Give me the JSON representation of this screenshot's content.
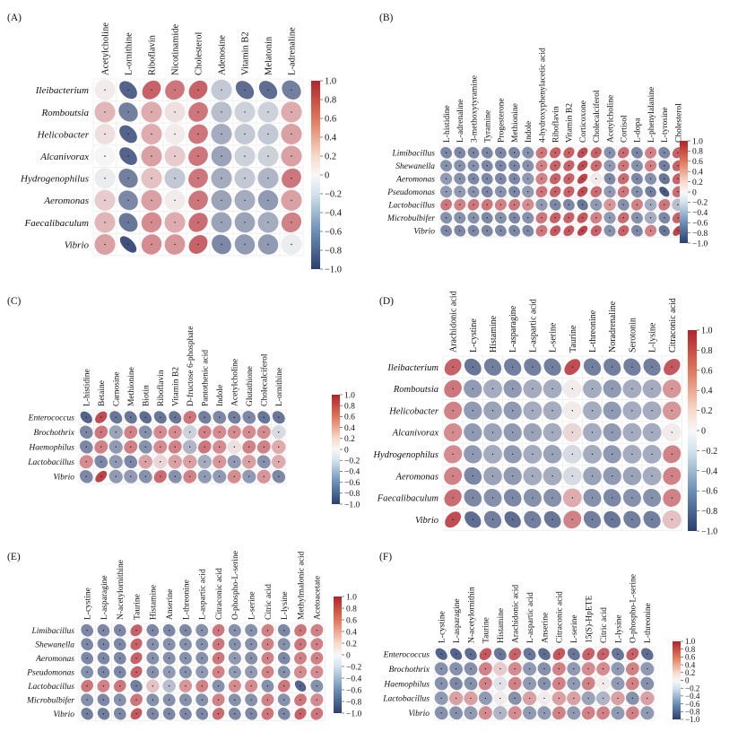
{
  "colors": {
    "neg": "#2c3f70",
    "mid": "#f5f5f5",
    "pos": "#b2232b",
    "grid": "#ececec",
    "border": "#d8d8d8"
  },
  "chart_data": [
    {
      "type": "heatmap",
      "panel": "(A)",
      "title": "",
      "columns": [
        "Acetylcholine",
        "L-ornithine",
        "Riboflavin",
        "Nicotinamide",
        "Cholesterol",
        "Adenosine",
        "Vitamin B2",
        "Melatonin",
        "L-adrenaline"
      ],
      "rows": [
        "Ileibacterium",
        "Romboutsia",
        "Helicobacter",
        "Alcanivorax",
        "Hydrogenophilus",
        "Aeromonas",
        "Faecalibaculum",
        "Vibrio"
      ],
      "values": [
        [
          0.05,
          -0.8,
          0.7,
          0.6,
          0.7,
          -0.25,
          -0.75,
          -0.75,
          -0.65
        ],
        [
          0.3,
          -0.65,
          0.35,
          0.1,
          0.6,
          -0.3,
          -0.2,
          -0.2,
          0.35
        ],
        [
          0.1,
          -0.8,
          0.35,
          0.05,
          0.6,
          -0.4,
          -0.25,
          -0.25,
          0.4
        ],
        [
          0.0,
          -0.8,
          0.4,
          0.2,
          0.6,
          -0.45,
          -0.2,
          -0.2,
          0.4
        ],
        [
          -0.05,
          -0.65,
          0.25,
          -0.25,
          0.6,
          -0.4,
          -0.25,
          -0.35,
          0.6
        ],
        [
          0.2,
          -0.6,
          0.4,
          0.05,
          0.6,
          -0.45,
          -0.4,
          -0.5,
          0.4
        ],
        [
          0.3,
          -0.7,
          0.5,
          0.35,
          0.65,
          -0.45,
          -0.45,
          -0.4,
          0.55
        ],
        [
          0.4,
          -0.9,
          0.5,
          0.45,
          0.7,
          -0.6,
          -0.5,
          -0.5,
          -0.05
        ]
      ],
      "colorbar": [
        "1.0",
        "0.8",
        "0.6",
        "0.4",
        "0.2",
        "0",
        "−0.2",
        "−0.4",
        "−0.6",
        "−0.8",
        "−1.0"
      ],
      "vmin": -1.0,
      "vmax": 1.0
    },
    {
      "type": "heatmap",
      "panel": "(B)",
      "title": "",
      "columns": [
        "L-histidine",
        "L-adrenaline",
        "3-methoxytyramine",
        "Tyramine",
        "Progesterone",
        "Methionine",
        "Indole",
        "4-hydroxyphenylacetic acid",
        "Riboflavin",
        "Vitamin B2",
        "Corticoxone",
        "Cholecalciferol",
        "Acetylcholine",
        "Cortisol",
        "L-dopa",
        "L-phenylalanine",
        "L-tyrosine",
        "Cholesterol"
      ],
      "rows": [
        "Limibacillus",
        "Shewanella",
        "Aeromonas",
        "Pseudomonas",
        "Lactobacillus",
        "Microbulbifer",
        "Vibrio"
      ],
      "values": [
        [
          -0.6,
          -0.6,
          -0.6,
          -0.6,
          -0.6,
          -0.6,
          -0.55,
          0.6,
          0.7,
          0.7,
          0.8,
          0.7,
          -0.55,
          0.65,
          -0.6,
          0.55,
          -0.6,
          0.7
        ],
        [
          -0.55,
          -0.55,
          -0.55,
          -0.6,
          -0.6,
          -0.6,
          -0.55,
          0.55,
          0.7,
          0.7,
          0.8,
          0.65,
          -0.5,
          0.6,
          -0.55,
          0.55,
          -0.65,
          0.7
        ],
        [
          -0.5,
          -0.55,
          -0.6,
          -0.6,
          -0.6,
          -0.6,
          -0.5,
          0.55,
          0.7,
          0.7,
          0.85,
          0.05,
          -0.6,
          0.65,
          -0.6,
          -0.55,
          -0.7,
          0.7
        ],
        [
          -0.5,
          -0.5,
          -0.55,
          -0.6,
          -0.55,
          -0.6,
          -0.5,
          0.6,
          0.7,
          0.7,
          0.8,
          0.65,
          -0.5,
          0.6,
          -0.55,
          -0.65,
          -0.85,
          0.65
        ],
        [
          0.6,
          0.55,
          0.6,
          0.6,
          0.55,
          0.6,
          0.5,
          -0.5,
          -0.6,
          -0.6,
          -0.7,
          -0.5,
          0.45,
          -0.55,
          0.55,
          -0.4,
          0.6,
          -0.3
        ],
        [
          -0.55,
          -0.55,
          -0.55,
          -0.6,
          -0.55,
          -0.6,
          -0.55,
          0.6,
          0.7,
          0.7,
          0.75,
          0.55,
          -0.5,
          0.65,
          -0.55,
          -0.4,
          -0.6,
          0.7
        ],
        [
          -0.6,
          -0.6,
          -0.6,
          -0.6,
          -0.6,
          -0.6,
          -0.6,
          0.6,
          0.75,
          0.75,
          0.85,
          0.7,
          -0.55,
          0.7,
          -0.6,
          0.55,
          -0.7,
          0.85
        ]
      ],
      "colorbar": [
        "1.0",
        "0.8",
        "0.6",
        "0.4",
        "0.2",
        "0",
        "−0.2",
        "−0.4",
        "−0.6",
        "−0.8",
        "−1.0"
      ],
      "vmin": -1.0,
      "vmax": 1.0
    },
    {
      "type": "heatmap",
      "panel": "(C)",
      "title": "",
      "columns": [
        "L-histidine",
        "Betaine",
        "Carnosine",
        "Methionine",
        "Biotin",
        "Riboflavin",
        "Vitamin B2",
        "D-fructose 6-phosphate",
        "Pantothenic acid",
        "Indole",
        "Acetylcholine",
        "Glutathione",
        "Cholecalciferol",
        "L-ornithine"
      ],
      "rows": [
        "Enterococcus",
        "Brochothrix",
        "Haemophilus",
        "Lactobacillus",
        "Vibrio"
      ],
      "values": [
        [
          -0.8,
          0.8,
          -0.7,
          -0.7,
          -0.75,
          -0.7,
          -0.7,
          0.6,
          -0.65,
          -0.6,
          -0.65,
          -0.6,
          -0.7,
          -0.7
        ],
        [
          -0.6,
          0.6,
          -0.45,
          0.55,
          -0.55,
          0.5,
          0.5,
          -0.2,
          0.55,
          0.5,
          0.5,
          0.5,
          0.5,
          -0.15
        ],
        [
          -0.6,
          0.55,
          -0.5,
          0.55,
          -0.55,
          0.5,
          0.55,
          -0.35,
          0.6,
          0.5,
          0.1,
          0.55,
          0.55,
          0.35
        ],
        [
          0.5,
          -0.6,
          -0.5,
          -0.6,
          0.4,
          0.15,
          0.4,
          0.4,
          -0.4,
          0.45,
          -0.5,
          0.4,
          -0.55,
          0.35
        ],
        [
          -0.6,
          0.85,
          -0.5,
          -0.5,
          -0.55,
          0.65,
          -0.55,
          0.55,
          -0.5,
          -0.5,
          0.5,
          -0.5,
          0.45,
          -0.6
        ]
      ],
      "colorbar": [
        "1.0",
        "0.8",
        "0.6",
        "0.4",
        "0.2",
        "0",
        "−0.2",
        "−0.4",
        "−0.6",
        "−0.8",
        "−1.0"
      ],
      "vmin": -1.0,
      "vmax": 1.0
    },
    {
      "type": "heatmap",
      "panel": "(D)",
      "title": "",
      "columns": [
        "Arachidonic acid",
        "L-cystine",
        "Histamine",
        "L-asparagine",
        "L-aspartic acid",
        "L-serine",
        "Taurine",
        "L-threonine",
        "Noradrenaline",
        "Serotonin",
        "L-lysine",
        "Citraconic acid"
      ],
      "rows": [
        "Ileibacterium",
        "Romboutsia",
        "Helicobacter",
        "Alcanivorax",
        "Hydrogenophilus",
        "Aeromonas",
        "Faecalibaculum",
        "Vibrio"
      ],
      "values": [
        [
          0.7,
          -0.7,
          -0.65,
          -0.65,
          -0.65,
          -0.65,
          0.8,
          -0.65,
          -0.65,
          -0.65,
          -0.65,
          0.75
        ],
        [
          0.6,
          -0.5,
          -0.4,
          -0.5,
          -0.4,
          -0.4,
          0.05,
          -0.4,
          -0.5,
          -0.4,
          -0.4,
          0.45
        ],
        [
          0.55,
          -0.5,
          -0.45,
          -0.5,
          -0.4,
          -0.4,
          0.05,
          -0.4,
          -0.5,
          -0.4,
          -0.4,
          0.45
        ],
        [
          0.5,
          -0.5,
          -0.45,
          -0.5,
          -0.45,
          -0.4,
          0.15,
          -0.4,
          -0.5,
          -0.4,
          -0.4,
          0.05
        ],
        [
          0.5,
          -0.5,
          -0.4,
          -0.5,
          -0.4,
          -0.45,
          -0.15,
          -0.4,
          -0.5,
          -0.4,
          -0.4,
          0.55
        ],
        [
          0.55,
          -0.6,
          -0.45,
          -0.5,
          -0.4,
          -0.4,
          -0.15,
          -0.45,
          -0.5,
          -0.45,
          -0.4,
          0.55
        ],
        [
          0.65,
          -0.6,
          -0.55,
          -0.6,
          -0.55,
          -0.55,
          0.35,
          -0.55,
          -0.6,
          -0.55,
          -0.55,
          0.55
        ],
        [
          0.8,
          -0.75,
          -0.65,
          -0.75,
          -0.65,
          -0.7,
          0.55,
          -0.65,
          -0.7,
          -0.65,
          -0.65,
          0.25
        ]
      ],
      "colorbar": [
        "1.0",
        "0.8",
        "0.6",
        "0.4",
        "0.2",
        "0",
        "−0.2",
        "−0.4",
        "−0.6",
        "−0.8",
        "−1.0"
      ],
      "vmin": -1.0,
      "vmax": 1.0
    },
    {
      "type": "heatmap",
      "panel": "(E)",
      "title": "",
      "columns": [
        "L-cystine",
        "L-asparagine",
        "N-acetylornithine",
        "Taurine",
        "Histamine",
        "Anserine",
        "L-threonine",
        "L-aspartic acid",
        "Citraconic acid",
        "O-phospho-L-serine",
        "L-serine",
        "Citric acid",
        "L-lysine",
        "Methylmalonic acid",
        "Acetoacetate"
      ],
      "rows": [
        "Limibacillus",
        "Shewanella",
        "Aeromonas",
        "Pseudomonas",
        "Lactobacillus",
        "Microbulbifer",
        "Vibrio"
      ],
      "values": [
        [
          -0.6,
          -0.6,
          -0.6,
          0.7,
          -0.6,
          -0.6,
          -0.6,
          -0.55,
          0.6,
          -0.55,
          -0.55,
          0.55,
          -0.6,
          0.6,
          0.55
        ],
        [
          -0.6,
          -0.6,
          -0.6,
          0.7,
          -0.55,
          -0.55,
          -0.55,
          -0.55,
          0.6,
          -0.55,
          -0.55,
          0.55,
          -0.55,
          0.6,
          0.55
        ],
        [
          -0.6,
          -0.6,
          -0.6,
          0.7,
          -0.55,
          -0.55,
          -0.55,
          -0.55,
          0.6,
          -0.5,
          -0.55,
          0.55,
          -0.6,
          0.55,
          0.55
        ],
        [
          -0.55,
          -0.6,
          -0.6,
          0.7,
          -0.55,
          -0.5,
          -0.55,
          -0.5,
          0.55,
          -0.5,
          -0.5,
          0.55,
          -0.55,
          0.5,
          0.5
        ],
        [
          0.6,
          0.55,
          0.6,
          -0.65,
          0.25,
          -0.3,
          0.45,
          0.55,
          -0.55,
          0.5,
          0.5,
          -0.55,
          0.6,
          -0.8,
          -0.55
        ],
        [
          -0.55,
          -0.6,
          -0.55,
          0.6,
          -0.55,
          -0.55,
          -0.55,
          -0.55,
          0.55,
          -0.55,
          -0.55,
          0.55,
          -0.55,
          0.6,
          0.5
        ],
        [
          -0.65,
          -0.65,
          -0.6,
          0.75,
          -0.6,
          -0.6,
          -0.6,
          -0.6,
          0.65,
          -0.6,
          -0.6,
          0.6,
          -0.6,
          0.7,
          0.6
        ]
      ],
      "colorbar": [
        "1.0",
        "0.8",
        "0.6",
        "0.4",
        "0.2",
        "0",
        "−0.2",
        "−0.4",
        "−0.6",
        "−0.8",
        "−1.0"
      ],
      "vmin": -1.0,
      "vmax": 1.0
    },
    {
      "type": "heatmap",
      "panel": "(F)",
      "title": "",
      "columns": [
        "L-cystine",
        "L-asparagine",
        "N-acetylornithin",
        "Taurine",
        "Histamine",
        "Arachidonic acid",
        "L-aspartic acid",
        "Anserine",
        "Citraconic acid",
        "L-serine",
        "15(S)-HpETE",
        "Citric acid",
        "L-lysine",
        "O-phospho-L-serine",
        "L-threonine"
      ],
      "rows": [
        "Enterococcus",
        "Brochothrix",
        "Haemophilus",
        "Lactobacillus",
        "Vibrio"
      ],
      "values": [
        [
          -0.8,
          -0.8,
          -0.75,
          0.75,
          -0.7,
          0.7,
          -0.7,
          -0.75,
          0.75,
          -0.7,
          0.7,
          0.7,
          -0.7,
          0.7,
          -0.75
        ],
        [
          -0.55,
          -0.55,
          -0.55,
          0.55,
          0.2,
          0.5,
          -0.5,
          -0.55,
          0.55,
          -0.5,
          0.5,
          0.5,
          -0.5,
          0.55,
          -0.5
        ],
        [
          -0.55,
          -0.6,
          -0.55,
          0.55,
          -0.1,
          0.55,
          -0.5,
          -0.55,
          0.55,
          -0.5,
          0.55,
          0.05,
          -0.5,
          0.55,
          -0.55
        ],
        [
          -0.5,
          0.4,
          0.4,
          -0.5,
          0.05,
          -0.55,
          0.4,
          0.05,
          0.4,
          0.4,
          -0.45,
          -0.35,
          0.4,
          -0.55,
          0.4
        ],
        [
          -0.55,
          -0.55,
          -0.5,
          0.5,
          -0.35,
          0.5,
          -0.5,
          -0.5,
          0.55,
          -0.5,
          0.55,
          0.55,
          -0.5,
          0.55,
          -0.5
        ]
      ],
      "colorbar": [
        "1.0",
        "0.8",
        "0.6",
        "0.4",
        "0.2",
        "0",
        "−0.2",
        "−0.4",
        "−0.6",
        "−0.8",
        "−1.0"
      ],
      "vmin": -1.0,
      "vmax": 1.0
    }
  ]
}
